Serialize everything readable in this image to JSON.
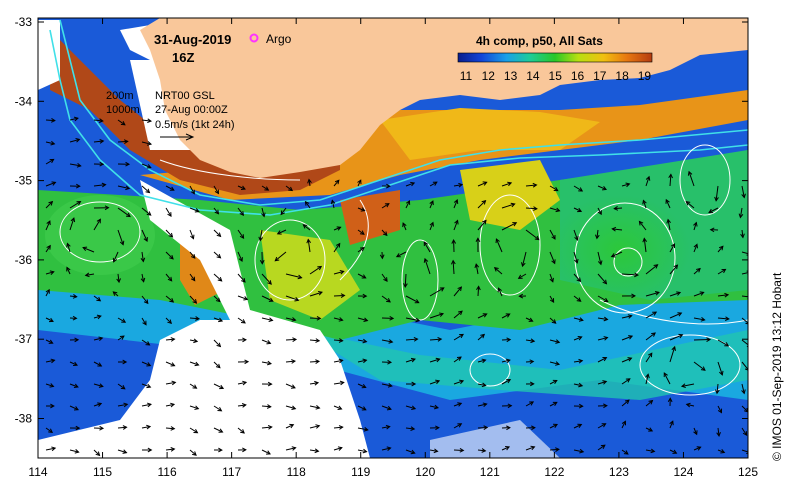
{
  "map": {
    "date": "31-Aug-2019",
    "time": "16Z",
    "argo_label": "Argo",
    "argo_marker_color": "#ff33ff",
    "product": "4h comp, p50, All Sats",
    "colorbar_ticks": [
      "11",
      "12",
      "13",
      "14",
      "15",
      "16",
      "17",
      "18",
      "19"
    ],
    "colorbar_colors": [
      "#0a1e8c",
      "#1144d8",
      "#1aa0e8",
      "#1ecc9a",
      "#28c828",
      "#b8e010",
      "#f0c010",
      "#e87810",
      "#b43c10"
    ],
    "land_color": "#f9c79a",
    "contour_labels": [
      "200m",
      "1000m"
    ],
    "altimetry": "NRT00 GSL",
    "altimetry_date": "27-Aug 00:00Z",
    "vector_scale_label": "0.5m/s (1kt 24h)",
    "x_ticks": [
      "114",
      "115",
      "116",
      "117",
      "118",
      "119",
      "120",
      "121",
      "122",
      "123",
      "124",
      "125"
    ],
    "y_ticks": [
      "-33",
      "-34",
      "-35",
      "-36",
      "-37",
      "-38"
    ],
    "credit": "© IMOS 01-Sep-2019 13:12 Hobart"
  }
}
